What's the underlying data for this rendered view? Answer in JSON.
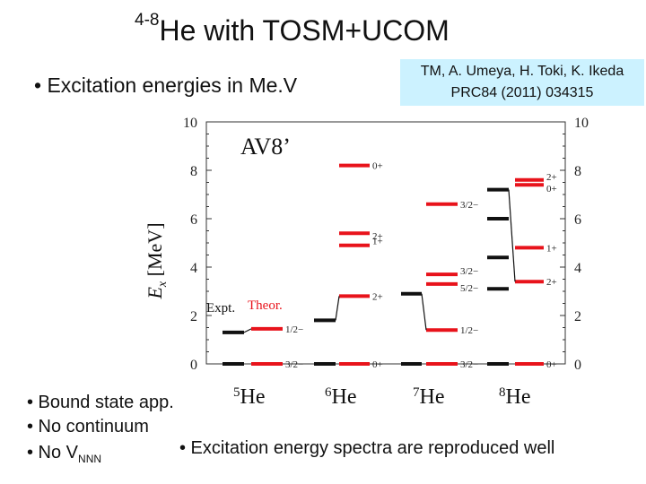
{
  "slide": {
    "title_sup": "4-8",
    "title_main": "He  with TOSM+UCOM",
    "bullet_main": "• Excitation energies in Me.V",
    "reference": {
      "line1": "TM, A. Umeya, H. Toki, K. Ikeda",
      "line2": "PRC84 (2011) 034315"
    },
    "bottom_bullets": {
      "b1": "• Bound state app.",
      "b2": "• No continuum",
      "b3_prefix": "• No V",
      "b3_sub": "NNN"
    },
    "conclusion": "• Excitation energy spectra are reproduced well"
  },
  "chart_data": {
    "type": "level-scheme",
    "title": "AV8’",
    "ylabel_main": "E",
    "ylabel_sub": "x",
    "ylabel_unit": "[MeV]",
    "ylim": [
      0,
      10
    ],
    "yticks": [
      0,
      2,
      4,
      6,
      8,
      10
    ],
    "legend": {
      "expt": "Expt.",
      "theor": "Theor.",
      "expt_color": "#111111",
      "theor_color": "#e8131b"
    },
    "nuclei": [
      {
        "label": "5He",
        "expt": [
          0,
          1.3
        ],
        "theor": [
          0,
          1.45
        ],
        "spins": [
          "3/2−",
          "1/2−"
        ]
      },
      {
        "label": "6He",
        "expt": [
          0,
          1.8
        ],
        "theor": [
          0,
          2.8,
          4.9,
          5.4,
          8.2
        ],
        "spins": [
          "0+",
          "2+",
          "1+",
          "2+",
          "0+"
        ]
      },
      {
        "label": "7He",
        "expt": [
          0,
          2.9
        ],
        "theor": [
          0,
          1.4,
          3.3,
          3.7,
          6.6
        ],
        "spins": [
          "3/2−",
          "1/2−",
          "5/2−",
          "3/2−",
          "3/2−"
        ]
      },
      {
        "label": "8He",
        "expt": [
          0,
          3.1,
          4.4,
          6.0,
          7.2
        ],
        "theor": [
          0,
          3.4,
          4.8,
          7.4,
          7.6
        ],
        "spins": [
          "0+",
          "2+",
          "1+",
          "0+",
          "2+"
        ]
      }
    ]
  }
}
